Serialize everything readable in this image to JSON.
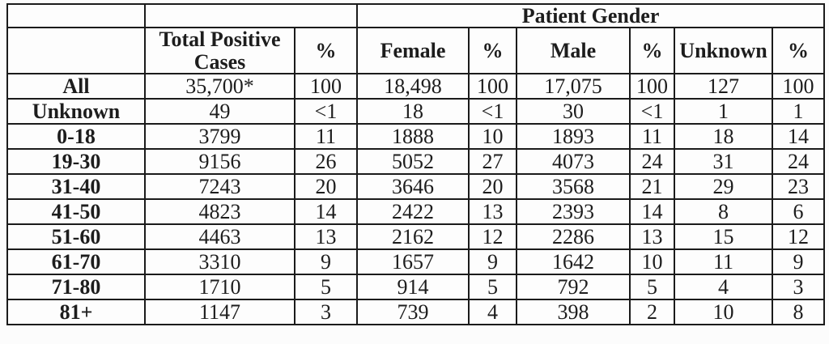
{
  "colors": {
    "border": "#1b1b1b",
    "text": "#1d1d1d",
    "cell_background": "#fdfdfd"
  },
  "table": {
    "gender_group_header": "Patient Gender",
    "column_headers": [
      "Total Positive Cases",
      "%",
      "Female",
      "%",
      "Male",
      "%",
      "Unknown",
      "%"
    ],
    "rows": [
      {
        "label": "All",
        "values": [
          "35,700*",
          "100",
          "18,498",
          "100",
          "17,075",
          "100",
          "127",
          "100"
        ]
      },
      {
        "label": "Unknown",
        "values": [
          "49",
          "<1",
          "18",
          "<1",
          "30",
          "<1",
          "1",
          "1"
        ]
      },
      {
        "label": "0-18",
        "values": [
          "3799",
          "11",
          "1888",
          "10",
          "1893",
          "11",
          "18",
          "14"
        ]
      },
      {
        "label": "19-30",
        "values": [
          "9156",
          "26",
          "5052",
          "27",
          "4073",
          "24",
          "31",
          "24"
        ]
      },
      {
        "label": "31-40",
        "values": [
          "7243",
          "20",
          "3646",
          "20",
          "3568",
          "21",
          "29",
          "23"
        ]
      },
      {
        "label": "41-50",
        "values": [
          "4823",
          "14",
          "2422",
          "13",
          "2393",
          "14",
          "8",
          "6"
        ]
      },
      {
        "label": "51-60",
        "values": [
          "4463",
          "13",
          "2162",
          "12",
          "2286",
          "13",
          "15",
          "12"
        ]
      },
      {
        "label": "61-70",
        "values": [
          "3310",
          "9",
          "1657",
          "9",
          "1642",
          "10",
          "11",
          "9"
        ]
      },
      {
        "label": "71-80",
        "values": [
          "1710",
          "5",
          "914",
          "5",
          "792",
          "5",
          "4",
          "3"
        ]
      },
      {
        "label": "81+",
        "values": [
          "1147",
          "3",
          "739",
          "4",
          "398",
          "2",
          "10",
          "8"
        ]
      }
    ]
  }
}
